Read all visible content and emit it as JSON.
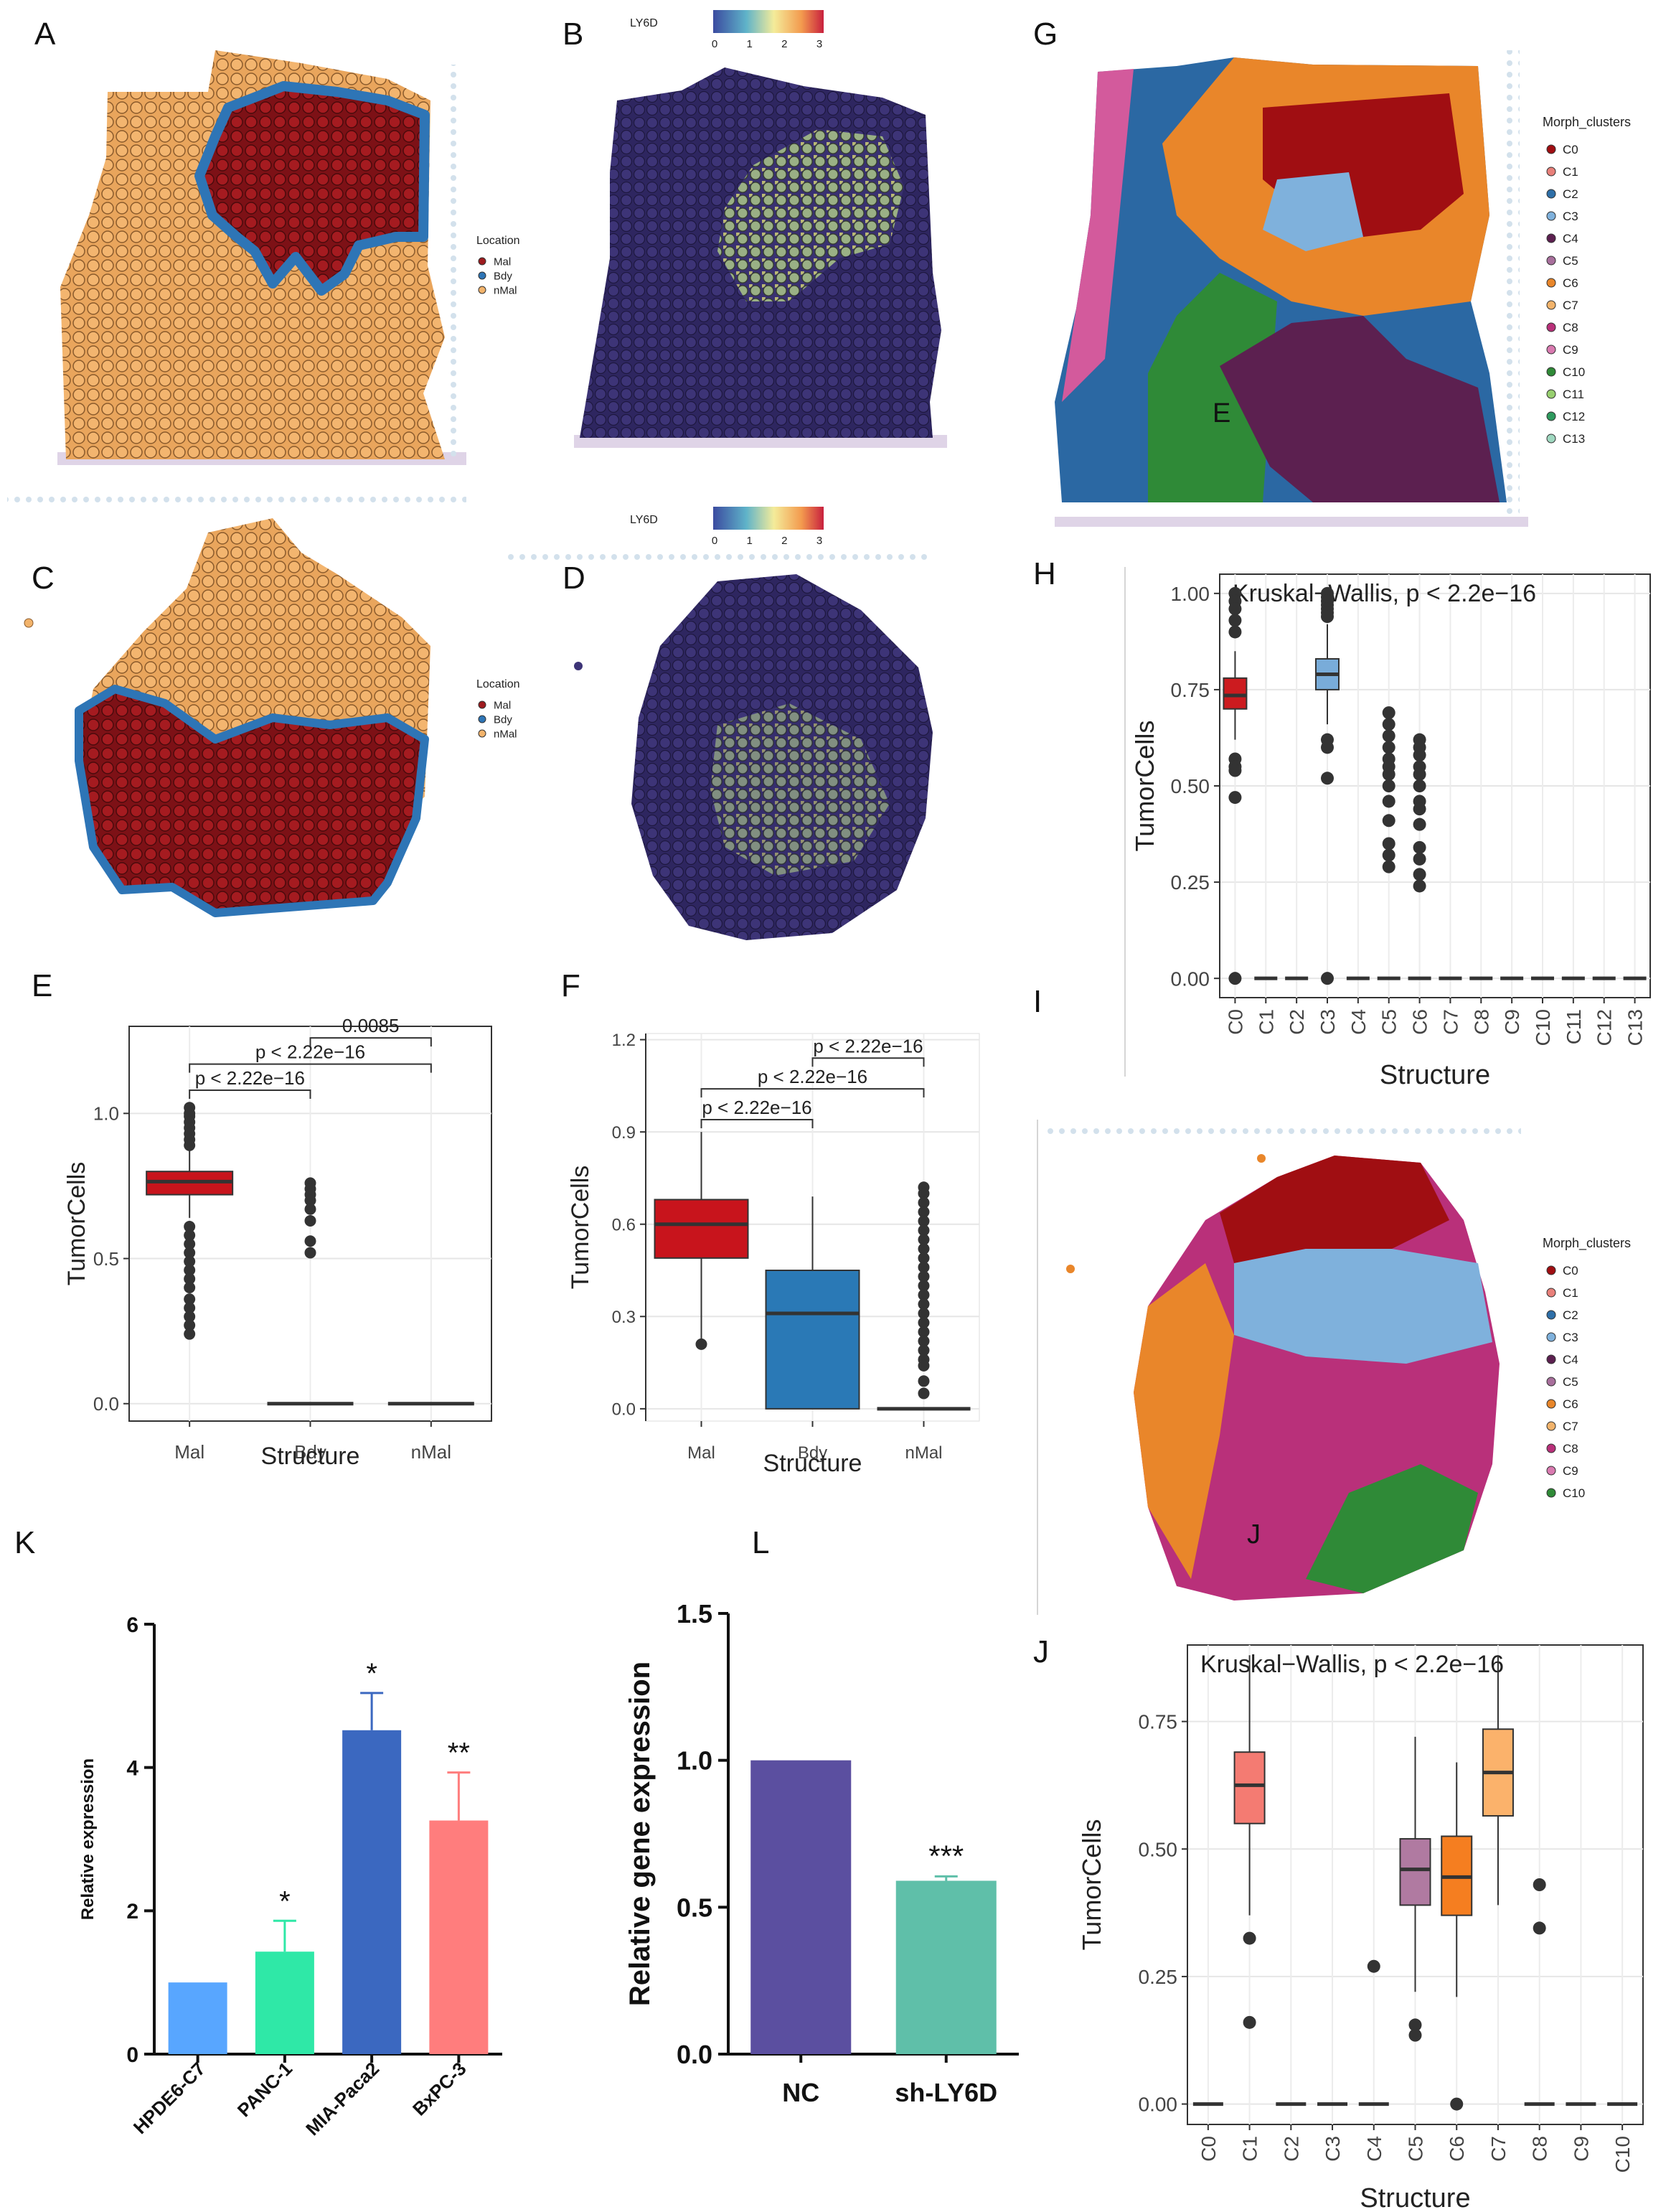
{
  "panels": {
    "A": {
      "label": "A",
      "legend": {
        "title": "Location",
        "items": [
          {
            "name": "Mal",
            "color": "#9e1b1e"
          },
          {
            "name": "Bdy",
            "color": "#2e75b6"
          },
          {
            "name": "nMal",
            "color": "#f2b36b"
          }
        ]
      }
    },
    "B": {
      "label": "B",
      "colorbar": {
        "title": "LY6D",
        "ticks": [
          "0",
          "1",
          "2",
          "3"
        ]
      }
    },
    "C": {
      "label": "C",
      "legend": {
        "title": "Location",
        "items": [
          {
            "name": "Mal",
            "color": "#9e1b1e"
          },
          {
            "name": "Bdy",
            "color": "#2e75b6"
          },
          {
            "name": "nMal",
            "color": "#f2b36b"
          }
        ]
      }
    },
    "D": {
      "label": "D",
      "colorbar": {
        "title": "LY6D",
        "ticks": [
          "0",
          "1",
          "2",
          "3"
        ]
      }
    },
    "G": {
      "label": "G",
      "inset_letter": "E",
      "legend": {
        "title": "Morph_clusters",
        "items": [
          {
            "name": "C0",
            "color": "#a00e12"
          },
          {
            "name": "C1",
            "color": "#e8807a"
          },
          {
            "name": "C2",
            "color": "#2e6fa8"
          },
          {
            "name": "C3",
            "color": "#7fb1dc"
          },
          {
            "name": "C4",
            "color": "#5c2050"
          },
          {
            "name": "C5",
            "color": "#a86f9c"
          },
          {
            "name": "C6",
            "color": "#e8862a"
          },
          {
            "name": "C7",
            "color": "#f2b36b"
          },
          {
            "name": "C8",
            "color": "#b9307a"
          },
          {
            "name": "C9",
            "color": "#d97ab0"
          },
          {
            "name": "C10",
            "color": "#2f8a37"
          },
          {
            "name": "C11",
            "color": "#97cf6f"
          },
          {
            "name": "C12",
            "color": "#2e9a5e"
          },
          {
            "name": "C13",
            "color": "#9fd8c0"
          }
        ]
      }
    },
    "I": {
      "label": "I",
      "inset_letter": "J",
      "legend": {
        "title": "Morph_clusters",
        "items": [
          {
            "name": "C0",
            "color": "#a00e12"
          },
          {
            "name": "C1",
            "color": "#e8807a"
          },
          {
            "name": "C2",
            "color": "#2e6fa8"
          },
          {
            "name": "C3",
            "color": "#7fb1dc"
          },
          {
            "name": "C4",
            "color": "#5c2050"
          },
          {
            "name": "C5",
            "color": "#a86f9c"
          },
          {
            "name": "C6",
            "color": "#e8862a"
          },
          {
            "name": "C7",
            "color": "#f2b36b"
          },
          {
            "name": "C8",
            "color": "#b9307a"
          },
          {
            "name": "C9",
            "color": "#d97ab0"
          },
          {
            "name": "C10",
            "color": "#2f8a37"
          }
        ]
      }
    }
  },
  "chart_data": [
    {
      "id": "E",
      "panel_label": "E",
      "type": "box",
      "xlabel": "Structure",
      "ylabel": "TumorCells",
      "categories": [
        "Mal",
        "Bdy",
        "nMal"
      ],
      "ylim": [
        -0.06,
        1.3
      ],
      "yticks": [
        0.0,
        0.5,
        1.0
      ],
      "ytick_labels": [
        "0.0",
        "0.5",
        "1.0"
      ],
      "boxes": [
        {
          "q1": 0.72,
          "median": 0.765,
          "q3": 0.8,
          "lo": 0.64,
          "hi": 0.88,
          "fill": "#c8141c",
          "outliers": [
            1.02,
            1.0,
            0.99,
            0.97,
            0.95,
            0.93,
            0.91,
            0.89,
            0.61,
            0.58,
            0.55,
            0.52,
            0.49,
            0.46,
            0.43,
            0.4,
            0.36,
            0.33,
            0.3,
            0.27,
            0.24
          ]
        },
        {
          "q1": 0.0,
          "median": 0.0,
          "q3": 0.0,
          "lo": 0.0,
          "hi": 0.0,
          "fill": "#c8141c",
          "outliers": [
            0.76,
            0.74,
            0.72,
            0.7,
            0.67,
            0.63,
            0.56,
            0.52
          ]
        },
        {
          "q1": 0.0,
          "median": 0.0,
          "q3": 0.0,
          "lo": 0.0,
          "hi": 0.0,
          "fill": "#c8141c",
          "outliers": []
        }
      ],
      "comparisons": [
        {
          "a": 0,
          "b": 1,
          "y": 1.08,
          "label": "p < 2.22e−16"
        },
        {
          "a": 0,
          "b": 2,
          "y": 1.17,
          "label": "p < 2.22e−16"
        },
        {
          "a": 1,
          "b": 2,
          "y": 1.26,
          "label": "0.0085"
        }
      ]
    },
    {
      "id": "F",
      "panel_label": "F",
      "type": "box",
      "xlabel": "Structure",
      "ylabel": "TumorCells",
      "categories": [
        "Mal",
        "Bdy",
        "nMal"
      ],
      "ylim": [
        -0.04,
        1.22
      ],
      "yticks": [
        0.0,
        0.3,
        0.6,
        0.9,
        1.2
      ],
      "ytick_labels": [
        "0.0",
        "0.3",
        "0.6",
        "0.9",
        "1.2"
      ],
      "boxes": [
        {
          "q1": 0.49,
          "median": 0.6,
          "q3": 0.68,
          "lo": 0.21,
          "hi": 0.9,
          "fill": "#c8141c",
          "outliers": [
            0.21
          ]
        },
        {
          "q1": 0.0,
          "median": 0.31,
          "q3": 0.45,
          "lo": 0.0,
          "hi": 0.69,
          "fill": "#2a79b6",
          "outliers": []
        },
        {
          "q1": 0.0,
          "median": 0.0,
          "q3": 0.0,
          "lo": 0.0,
          "hi": 0.0,
          "fill": "#2a79b6",
          "outliers": [
            0.72,
            0.7,
            0.67,
            0.64,
            0.61,
            0.58,
            0.55,
            0.52,
            0.49,
            0.46,
            0.43,
            0.4,
            0.37,
            0.34,
            0.31,
            0.28,
            0.25,
            0.22,
            0.19,
            0.16,
            0.14,
            0.09,
            0.05
          ]
        }
      ],
      "comparisons": [
        {
          "a": 0,
          "b": 1,
          "y": 0.94,
          "label": "p < 2.22e−16"
        },
        {
          "a": 0,
          "b": 2,
          "y": 1.04,
          "label": "p < 2.22e−16"
        },
        {
          "a": 1,
          "b": 2,
          "y": 1.14,
          "label": "p < 2.22e−16"
        }
      ]
    },
    {
      "id": "H",
      "panel_label": "H",
      "type": "box",
      "title": "Kruskal−Wallis, p < 2.2e−16",
      "xlabel": "Structure",
      "ylabel": "TumorCells",
      "categories": [
        "C0",
        "C1",
        "C2",
        "C3",
        "C4",
        "C5",
        "C6",
        "C7",
        "C8",
        "C9",
        "C10",
        "C11",
        "C12",
        "C13"
      ],
      "ylim": [
        -0.05,
        1.05
      ],
      "yticks": [
        0.0,
        0.25,
        0.5,
        0.75,
        1.0
      ],
      "ytick_labels": [
        "0.00",
        "0.25",
        "0.50",
        "0.75",
        "1.00"
      ],
      "boxes": [
        {
          "q1": 0.7,
          "median": 0.735,
          "q3": 0.78,
          "lo": 0.62,
          "hi": 0.85,
          "fill": "#cc1b1f",
          "outliers": [
            1.0,
            0.98,
            0.96,
            0.93,
            0.9,
            0.57,
            0.55,
            0.54,
            0.47,
            0.0
          ]
        },
        {
          "q1": 0.0,
          "median": 0.0,
          "q3": 0.0,
          "lo": 0.0,
          "hi": 0.0,
          "fill": "#cc1b1f",
          "outliers": []
        },
        {
          "q1": 0.0,
          "median": 0.0,
          "q3": 0.0,
          "lo": 0.0,
          "hi": 0.0,
          "fill": "#cc1b1f",
          "outliers": []
        },
        {
          "q1": 0.75,
          "median": 0.79,
          "q3": 0.83,
          "lo": 0.66,
          "hi": 0.92,
          "fill": "#79acd9",
          "outliers": [
            1.0,
            0.99,
            0.98,
            0.97,
            0.96,
            0.95,
            0.94,
            0.62,
            0.6,
            0.52,
            0.0
          ]
        },
        {
          "q1": 0.0,
          "median": 0.0,
          "q3": 0.0,
          "lo": 0.0,
          "hi": 0.0,
          "fill": "#cc1b1f",
          "outliers": []
        },
        {
          "q1": 0.0,
          "median": 0.0,
          "q3": 0.0,
          "lo": 0.0,
          "hi": 0.0,
          "fill": "#cc1b1f",
          "outliers": [
            0.69,
            0.66,
            0.63,
            0.6,
            0.57,
            0.55,
            0.53,
            0.5,
            0.46,
            0.41,
            0.35,
            0.32,
            0.29
          ]
        },
        {
          "q1": 0.0,
          "median": 0.0,
          "q3": 0.0,
          "lo": 0.0,
          "hi": 0.0,
          "fill": "#cc1b1f",
          "outliers": [
            0.62,
            0.6,
            0.58,
            0.55,
            0.53,
            0.5,
            0.46,
            0.44,
            0.4,
            0.34,
            0.31,
            0.27,
            0.24
          ]
        },
        {
          "q1": 0.0,
          "median": 0.0,
          "q3": 0.0,
          "lo": 0.0,
          "hi": 0.0,
          "fill": "#cc1b1f",
          "outliers": []
        },
        {
          "q1": 0.0,
          "median": 0.0,
          "q3": 0.0,
          "lo": 0.0,
          "hi": 0.0,
          "fill": "#cc1b1f",
          "outliers": []
        },
        {
          "q1": 0.0,
          "median": 0.0,
          "q3": 0.0,
          "lo": 0.0,
          "hi": 0.0,
          "fill": "#cc1b1f",
          "outliers": []
        },
        {
          "q1": 0.0,
          "median": 0.0,
          "q3": 0.0,
          "lo": 0.0,
          "hi": 0.0,
          "fill": "#cc1b1f",
          "outliers": []
        },
        {
          "q1": 0.0,
          "median": 0.0,
          "q3": 0.0,
          "lo": 0.0,
          "hi": 0.0,
          "fill": "#cc1b1f",
          "outliers": []
        },
        {
          "q1": 0.0,
          "median": 0.0,
          "q3": 0.0,
          "lo": 0.0,
          "hi": 0.0,
          "fill": "#cc1b1f",
          "outliers": []
        },
        {
          "q1": 0.0,
          "median": 0.0,
          "q3": 0.0,
          "lo": 0.0,
          "hi": 0.0,
          "fill": "#cc1b1f",
          "outliers": []
        }
      ]
    },
    {
      "id": "J",
      "panel_label": "J",
      "type": "box",
      "title": "Kruskal−Wallis, p < 2.2e−16",
      "xlabel": "Structure",
      "ylabel": "TumorCells",
      "categories": [
        "C0",
        "C1",
        "C2",
        "C3",
        "C4",
        "C5",
        "C6",
        "C7",
        "C8",
        "C9",
        "C10"
      ],
      "ylim": [
        -0.04,
        0.9
      ],
      "yticks": [
        0.0,
        0.25,
        0.5,
        0.75
      ],
      "ytick_labels": [
        "0.00",
        "0.25",
        "0.50",
        "0.75"
      ],
      "boxes": [
        {
          "q1": 0.0,
          "median": 0.0,
          "q3": 0.0,
          "lo": 0.0,
          "hi": 0.0,
          "fill": "#f47b72",
          "outliers": []
        },
        {
          "q1": 0.55,
          "median": 0.625,
          "q3": 0.69,
          "lo": 0.37,
          "hi": 0.88,
          "fill": "#f47b72",
          "outliers": [
            0.325,
            0.16
          ]
        },
        {
          "q1": 0.0,
          "median": 0.0,
          "q3": 0.0,
          "lo": 0.0,
          "hi": 0.0,
          "fill": "#f47b72",
          "outliers": []
        },
        {
          "q1": 0.0,
          "median": 0.0,
          "q3": 0.0,
          "lo": 0.0,
          "hi": 0.0,
          "fill": "#f47b72",
          "outliers": []
        },
        {
          "q1": 0.0,
          "median": 0.0,
          "q3": 0.0,
          "lo": 0.0,
          "hi": 0.0,
          "fill": "#f47b72",
          "outliers": [
            0.27
          ]
        },
        {
          "q1": 0.39,
          "median": 0.46,
          "q3": 0.52,
          "lo": 0.22,
          "hi": 0.72,
          "fill": "#b07aa1",
          "outliers": [
            0.155,
            0.135
          ]
        },
        {
          "q1": 0.37,
          "median": 0.445,
          "q3": 0.525,
          "lo": 0.21,
          "hi": 0.67,
          "fill": "#f57e20",
          "outliers": [
            0.0
          ]
        },
        {
          "q1": 0.565,
          "median": 0.65,
          "q3": 0.735,
          "lo": 0.39,
          "hi": 0.88,
          "fill": "#fbb26b",
          "outliers": []
        },
        {
          "q1": 0.0,
          "median": 0.0,
          "q3": 0.0,
          "lo": 0.0,
          "hi": 0.0,
          "fill": "#f47b72",
          "outliers": [
            0.43,
            0.345
          ]
        },
        {
          "q1": 0.0,
          "median": 0.0,
          "q3": 0.0,
          "lo": 0.0,
          "hi": 0.0,
          "fill": "#f47b72",
          "outliers": []
        },
        {
          "q1": 0.0,
          "median": 0.0,
          "q3": 0.0,
          "lo": 0.0,
          "hi": 0.0,
          "fill": "#f47b72",
          "outliers": []
        }
      ]
    },
    {
      "id": "K",
      "panel_label": "K",
      "type": "bar",
      "xlabel": "",
      "ylabel": "Relative  expression",
      "categories": [
        "HPDE6-C7",
        "PANC-1",
        "MIA-Paca2",
        "BxPC-3"
      ],
      "values": [
        1.0,
        1.43,
        4.52,
        3.26
      ],
      "errors": [
        0.0,
        0.43,
        0.52,
        0.67
      ],
      "significance": [
        "",
        "*",
        "*",
        "**"
      ],
      "colors": [
        "#58a6ff",
        "#2fe8a7",
        "#3b68c0",
        "#ff7d7d"
      ],
      "ylim": [
        0,
        6
      ],
      "yticks": [
        0,
        2,
        4,
        6
      ],
      "ytick_labels": [
        "0",
        "2",
        "4",
        "6"
      ]
    },
    {
      "id": "L",
      "panel_label": "L",
      "type": "bar",
      "xlabel": "",
      "ylabel": "Relative gene expression",
      "categories": [
        "NC",
        "sh-LY6D"
      ],
      "values": [
        1.0,
        0.59
      ],
      "errors": [
        0.0,
        0.015
      ],
      "significance": [
        "",
        "***"
      ],
      "colors": [
        "#5b4fa0",
        "#5fbfa9"
      ],
      "ylim": [
        0,
        1.5
      ],
      "yticks": [
        0.0,
        0.5,
        1.0,
        1.5
      ],
      "ytick_labels": [
        "0.0",
        "0.5",
        "1.0",
        "1.5"
      ]
    }
  ]
}
